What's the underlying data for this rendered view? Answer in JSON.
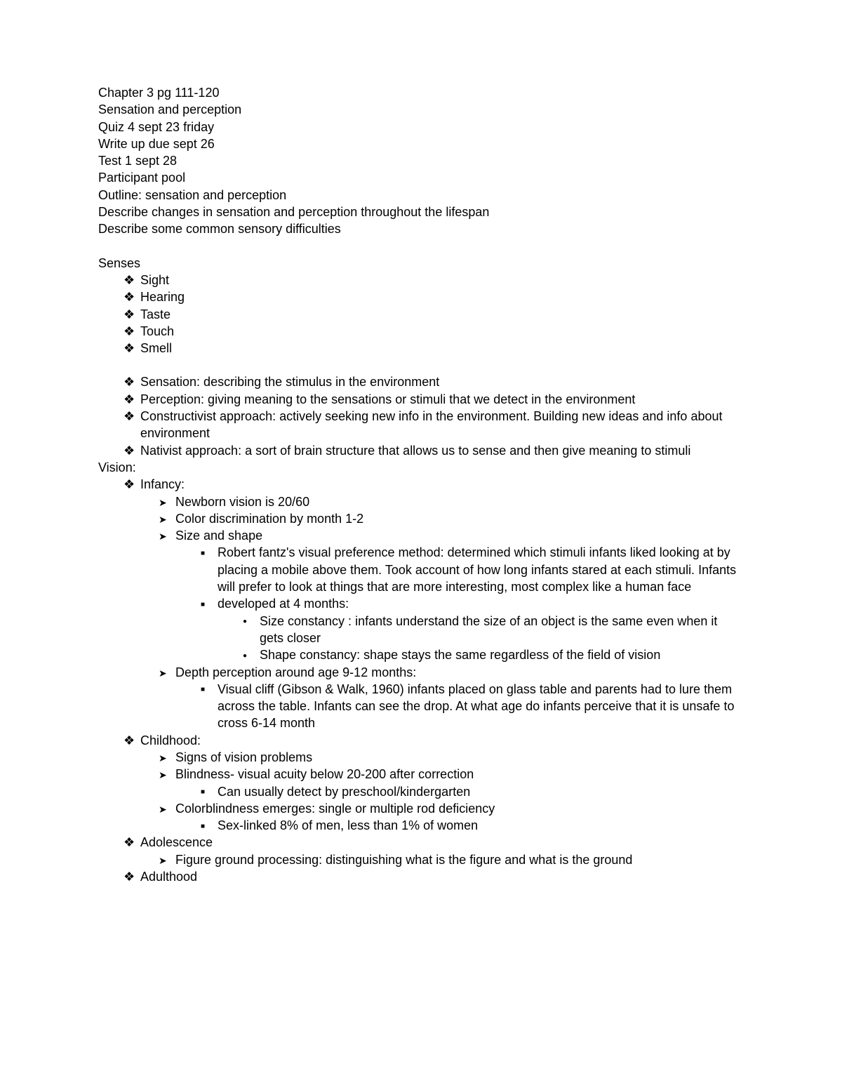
{
  "typography": {
    "font_family": "Arial",
    "font_size_pt": 13,
    "line_height": 1.35,
    "text_color": "#000000",
    "background_color": "#ffffff"
  },
  "header": {
    "lines": [
      "Chapter 3 pg 111-120",
      "Sensation and perception",
      "Quiz 4 sept 23 friday",
      "Write up due sept 26",
      "Test 1 sept 28",
      "Participant pool",
      "Outline: sensation and perception",
      "Describe changes in sensation and perception throughout the lifespan",
      "Describe some common sensory difficulties"
    ]
  },
  "senses": {
    "title": "Senses",
    "items": [
      "Sight",
      "Hearing",
      "Taste",
      "Touch",
      "Smell"
    ]
  },
  "definitions": {
    "items": [
      "Sensation: describing the stimulus in the environment",
      "Perception: giving meaning to the sensations or stimuli that we detect in the environment",
      "Constructivist approach: actively seeking new info in the environment. Building new ideas and info about environment",
      "Nativist approach: a sort of brain structure that allows us to sense and then give meaning to stimuli"
    ]
  },
  "vision": {
    "title": "Vision:",
    "infancy": {
      "label": "Infancy:",
      "points": [
        "Newborn vision is 20/60",
        "Color discrimination by month 1-2",
        "Size and shape"
      ],
      "size_shape_sub": [
        "Robert fantz's  visual preference method: determined which stimuli infants liked looking at by placing a mobile above them. Took account of how long infants stared at each stimuli. Infants will prefer to look at things that are more interesting, most complex like a human face",
        "developed at 4 months:"
      ],
      "developed_sub": [
        "Size constancy : infants understand the size of an object is the same even when it gets closer",
        "Shape constancy: shape stays the same regardless of the field of vision"
      ],
      "depth": "Depth perception around age 9-12 months:",
      "depth_sub": [
        "Visual cliff (Gibson & Walk, 1960) infants placed on glass table and parents had to lure them across the table. Infants can see the drop. At what age do infants perceive that it is unsafe to cross 6-14 month"
      ]
    },
    "childhood": {
      "label": "Childhood:",
      "points": [
        "Signs of vision problems",
        "Blindness- visual acuity below 20-200 after correction"
      ],
      "blindness_sub": [
        "Can usually detect by preschool/kindergarten"
      ],
      "colorblind": "Colorblindness emerges: single or multiple rod deficiency",
      "colorblind_sub": [
        "Sex-linked 8% of men, less than 1% of women"
      ]
    },
    "adolescence": {
      "label": "Adolescence",
      "points": [
        "Figure ground processing: distinguishing what is the figure and what is the ground"
      ]
    },
    "adulthood": {
      "label": "Adulthood"
    }
  }
}
